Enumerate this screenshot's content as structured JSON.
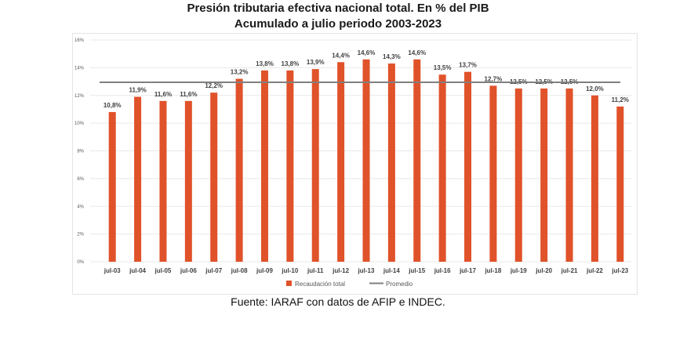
{
  "title_line1": "Presión tributaria efectiva nacional total. En % del PIB",
  "title_line2": "Acumulado a julio periodo 2003-2023",
  "source": "Fuente: IARAF con datos de AFIP e INDEC.",
  "colors": {
    "bar": "#e0522a",
    "average_line": "#7f7f7f",
    "grid": "#e8e8e8",
    "axis_text": "#595959"
  },
  "chart_data": {
    "type": "bar",
    "categories": [
      "jul-03",
      "jul-04",
      "jul-05",
      "jul-06",
      "jul-07",
      "jul-08",
      "jul-09",
      "jul-10",
      "jul-11",
      "jul-12",
      "jul-13",
      "jul-14",
      "jul-15",
      "jul-16",
      "jul-17",
      "jul-18",
      "jul-19",
      "jul-20",
      "jul-21",
      "jul-22",
      "jul-23"
    ],
    "series": [
      {
        "name": "Recaudación total",
        "values": [
          10.8,
          11.9,
          11.6,
          11.6,
          12.2,
          13.2,
          13.8,
          13.8,
          13.9,
          14.4,
          14.6,
          14.3,
          14.6,
          13.5,
          13.7,
          12.7,
          12.5,
          12.5,
          12.5,
          12.0,
          11.2
        ]
      }
    ],
    "data_labels": [
      "10,8%",
      "11,9%",
      "11,6%",
      "11,6%",
      "12,2%",
      "13,2%",
      "13,8%",
      "13,8%",
      "13,9%",
      "14,4%",
      "14,6%",
      "14,3%",
      "14,6%",
      "13,5%",
      "13,7%",
      "12,7%",
      "12,5%",
      "12,5%",
      "12,5%",
      "12,0%",
      "11,2%"
    ],
    "average": {
      "name": "Promedio",
      "value": 12.95
    },
    "y_ticks": [
      0,
      2,
      4,
      6,
      8,
      10,
      12,
      14,
      16
    ],
    "y_tick_labels": [
      "0%",
      "2%",
      "4%",
      "6%",
      "8%",
      "10%",
      "12%",
      "14%",
      "16%"
    ],
    "ylim": [
      0,
      16
    ],
    "legend_position": "bottom",
    "grid": true
  }
}
